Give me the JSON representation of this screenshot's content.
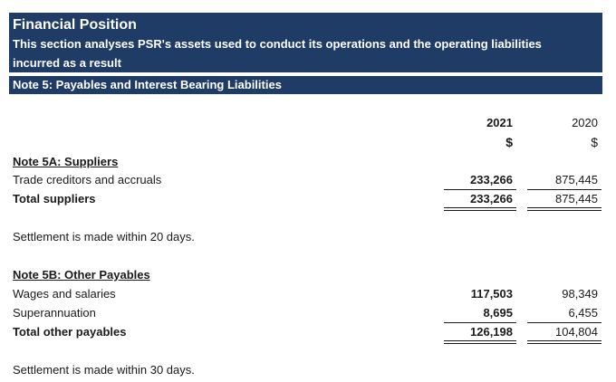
{
  "header": {
    "title": "Financial Position",
    "subtitle_line1": "This section analyses PSR's assets used to conduct its operations and the operating liabilities",
    "subtitle_line2": "incurred as a result"
  },
  "note": {
    "title": "Note 5: Payables and Interest Bearing Liabilities"
  },
  "columns": {
    "year_current": "2021",
    "year_prior": "2020",
    "unit_current": "$",
    "unit_prior": "$"
  },
  "note5a": {
    "heading": "Note 5A: Suppliers",
    "rows": [
      {
        "label": "Trade creditors and accruals",
        "v2021": "233,266",
        "v2020": "875,445"
      }
    ],
    "total": {
      "label": "Total suppliers",
      "v2021": "233,266",
      "v2020": "875,445"
    },
    "footnote": "Settlement is made within 20 days."
  },
  "note5b": {
    "heading": "Note 5B: Other Payables",
    "rows": [
      {
        "label": "Wages and salaries",
        "v2021": "117,503",
        "v2020": "98,349"
      },
      {
        "label": "Superannuation",
        "v2021": "8,695",
        "v2020": "6,455"
      }
    ],
    "total": {
      "label": "Total other payables",
      "v2021": "126,198",
      "v2020": "104,804"
    },
    "footnote": "Settlement is made within 30 days."
  }
}
